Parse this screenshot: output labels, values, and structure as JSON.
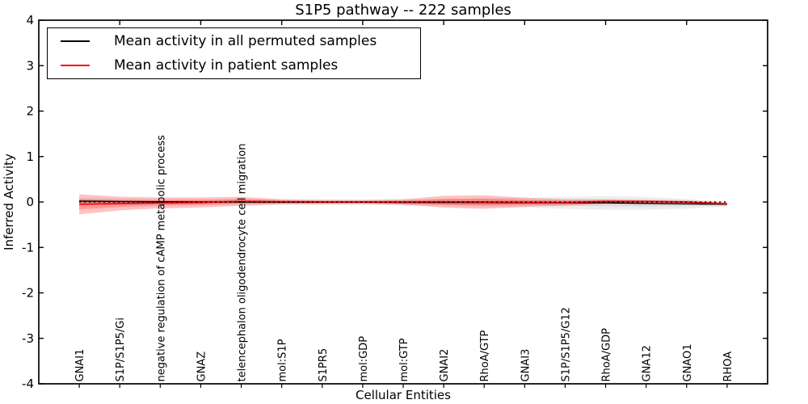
{
  "chart_data": {
    "type": "line",
    "title": "S1P5 pathway -- 222 samples",
    "xlabel": "Cellular Entities",
    "ylabel": "Inferred Activity",
    "ylim": [
      -4,
      4
    ],
    "yticks": [
      -4,
      -3,
      -2,
      -1,
      0,
      1,
      2,
      3,
      4
    ],
    "grid": false,
    "legend_position": "upper left",
    "categories": [
      "GNAI1",
      "S1P/S1P5/Gi",
      "negative regulation of cAMP metabolic process",
      "GNAZ",
      "telencephalon oligodendrocyte cell migration",
      "mol:S1P",
      "S1PR5",
      "mol:GDP",
      "mol:GTP",
      "GNAI2",
      "RhoA/GTP",
      "GNAI3",
      "S1P/S1P5/G12",
      "RhoA/GDP",
      "GNA12",
      "GNAO1",
      "RHOA"
    ],
    "series": [
      {
        "name": "Mean activity in all permuted samples",
        "color": "#000000",
        "band_color": "#777777",
        "mean": [
          0.02,
          0.01,
          0.005,
          0.0,
          0.0,
          -0.005,
          -0.005,
          -0.005,
          -0.01,
          -0.01,
          -0.01,
          -0.015,
          -0.02,
          -0.02,
          -0.03,
          -0.04,
          -0.05
        ],
        "band_outer": [
          0.07,
          0.065,
          0.06,
          0.06,
          0.06,
          0.06,
          0.06,
          0.06,
          0.065,
          0.075,
          0.09,
          0.11,
          0.13,
          0.15,
          0.14,
          0.11,
          0.05
        ],
        "band_inner": [
          0.035,
          0.033,
          0.03,
          0.03,
          0.03,
          0.03,
          0.03,
          0.03,
          0.033,
          0.038,
          0.045,
          0.055,
          0.065,
          0.075,
          0.07,
          0.055,
          0.025
        ]
      },
      {
        "name": "Mean activity in patient samples",
        "color": "#ff0000",
        "band_color": "#ff0000",
        "mean": [
          -0.05,
          -0.035,
          -0.02,
          -0.01,
          0.015,
          0.005,
          0.0,
          0.0,
          0.0,
          0.005,
          0.0,
          -0.005,
          -0.01,
          0.01,
          0.01,
          0.0,
          -0.04
        ],
        "band_outer": [
          0.22,
          0.15,
          0.12,
          0.11,
          0.1,
          0.055,
          0.045,
          0.04,
          0.06,
          0.13,
          0.15,
          0.1,
          0.07,
          0.05,
          0.04,
          0.035,
          0.03
        ],
        "band_inner": [
          0.11,
          0.075,
          0.06,
          0.055,
          0.05,
          0.028,
          0.023,
          0.02,
          0.03,
          0.065,
          0.075,
          0.05,
          0.035,
          0.025,
          0.02,
          0.018,
          0.015
        ]
      }
    ],
    "zero_line": {
      "value": 0,
      "style": "dotted",
      "color": "#000000"
    }
  }
}
